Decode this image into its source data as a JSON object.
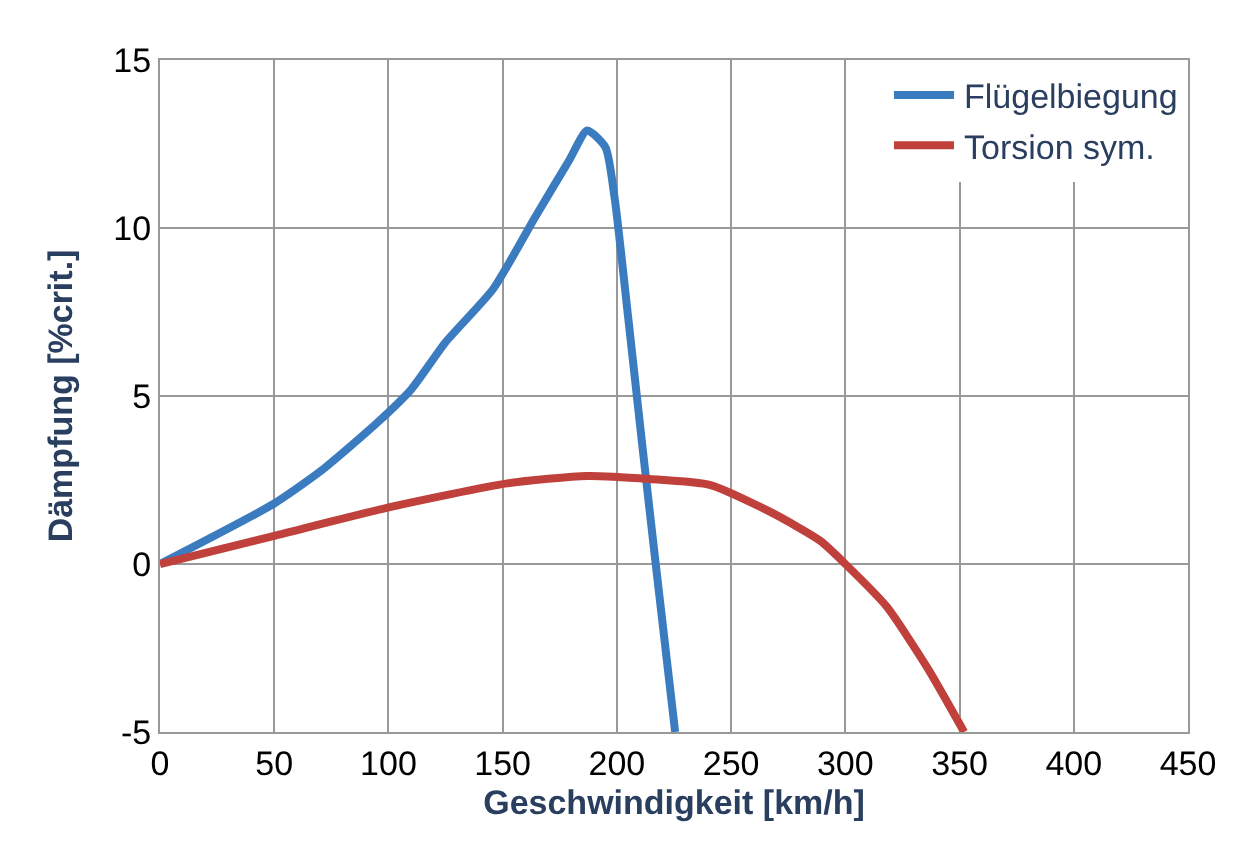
{
  "chart_data": {
    "type": "line",
    "xlabel": "Geschwindigkeit [km/h]",
    "ylabel": "Dämpfung [%crit.]",
    "xlim": [
      0,
      450
    ],
    "xticks": [
      0,
      50,
      100,
      150,
      200,
      250,
      300,
      350,
      400,
      450
    ],
    "ylim": [
      -5,
      15
    ],
    "yticks": [
      -5,
      0,
      5,
      10,
      15
    ],
    "grid": true,
    "legend": "top right",
    "marker": "none",
    "line_style": "solid",
    "series": [
      {
        "name": "Flügelbiegung",
        "color": "#3b7bbf",
        "x": [
          0,
          50,
          71,
          95,
          110,
          125,
          146,
          164,
          179,
          187,
          195,
          199,
          205,
          211,
          217,
          225.5
        ],
        "values": [
          0,
          1.8,
          2.8,
          4.2,
          5.2,
          6.6,
          8.2,
          10.3,
          12,
          12.9,
          12.4,
          10.9,
          7.3,
          3.6,
          0,
          -5
        ]
      },
      {
        "name": "Torsion sym.",
        "color": "#c0403c",
        "x": [
          0,
          50,
          101,
          152,
          187,
          214,
          241,
          268,
          289,
          300,
          318,
          336,
          352
        ],
        "values": [
          0,
          0.84,
          1.7,
          2.4,
          2.62,
          2.53,
          2.35,
          1.52,
          0.69,
          0,
          -1.26,
          -3.1,
          -5
        ]
      }
    ]
  }
}
